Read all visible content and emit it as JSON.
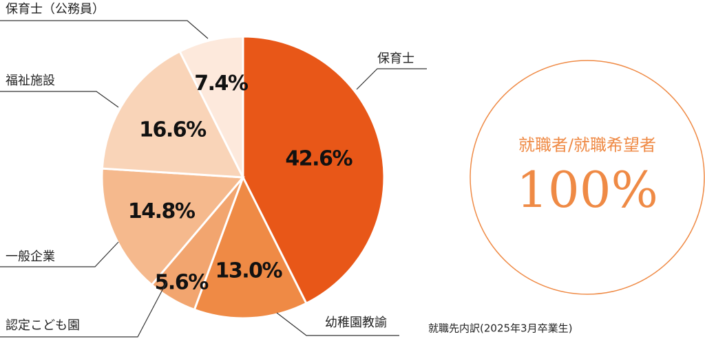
{
  "chart_data": {
    "type": "pie",
    "categories": [
      "保育士",
      "幼稚園教諭",
      "認定こども園",
      "一般企業",
      "福祉施設",
      "保育士（公務員）"
    ],
    "values": [
      42.6,
      13.0,
      5.6,
      14.8,
      16.6,
      7.4
    ],
    "value_labels": [
      "42.6%",
      "13.0%",
      "5.6%",
      "14.8%",
      "16.6%",
      "7.4%"
    ],
    "colors": [
      "#e85718",
      "#ef8a45",
      "#f2a56f",
      "#f5b98d",
      "#f9d4b8",
      "#fde9dc"
    ],
    "note": "就職先内訳(2025年3月卒業生)"
  },
  "summary": {
    "label": "就職者/就職希望者",
    "value": "100%"
  }
}
